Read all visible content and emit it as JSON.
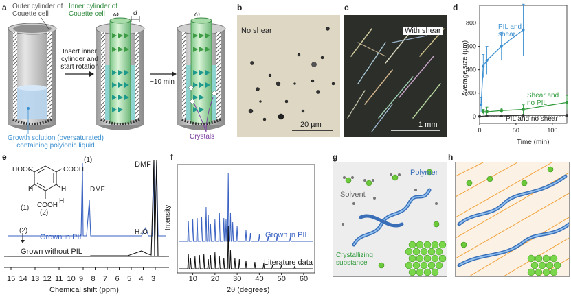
{
  "panel_letters": [
    "a",
    "b",
    "c",
    "d",
    "e",
    "f",
    "g",
    "h"
  ],
  "panel_a": {
    "outer_label": "Outer cylinder of Couette cell",
    "inner_label": "Inner cylinder of Couette cell",
    "omega": "ω",
    "d": "d",
    "arrow1": "Insert inner cylinder and start rotation",
    "arrow2": "~10 min",
    "solution_label": "Growth solution (oversaturated) containing polyionic liquid",
    "crystals_label": "Crystals"
  },
  "panel_b": {
    "label": "No shear",
    "scale": "20 µm"
  },
  "panel_c": {
    "label": "With shear",
    "scale": "1 mm"
  },
  "panel_d": {
    "chart_data": {
      "type": "line",
      "xlabel": "Time (min)",
      "ylabel": "Average size (µm)",
      "xlim": [
        0,
        120
      ],
      "ylim": [
        -60,
        950
      ],
      "xticks": [
        0,
        50,
        100
      ],
      "yticks": [
        0,
        200,
        400,
        600,
        800
      ],
      "series": [
        {
          "name": "PIL and shear",
          "color": "#3b8fd0",
          "x": [
            2,
            5,
            10,
            30,
            60
          ],
          "y": [
            100,
            430,
            480,
            600,
            740
          ],
          "err": [
            60,
            100,
            120,
            120,
            220
          ]
        },
        {
          "name": "Shear and no PIL",
          "color": "#2f9a3c",
          "x": [
            5,
            10,
            30,
            60,
            120
          ],
          "y": [
            40,
            40,
            50,
            60,
            120
          ],
          "err": [
            20,
            40,
            20,
            40,
            60
          ]
        },
        {
          "name": "PIL and no shear",
          "color": "#333333",
          "x": [
            0,
            10,
            30,
            60,
            120
          ],
          "y": [
            0,
            5,
            5,
            10,
            10
          ],
          "err": [
            0,
            0,
            0,
            0,
            0
          ]
        }
      ]
    }
  },
  "panel_e": {
    "labels": {
      "hooc": "HOOC",
      "cooh1": "COOH",
      "cooh2": "COOH",
      "h1": "H",
      "h2": "H",
      "h3": "H",
      "n1": "(1)",
      "n2": "(2)",
      "peak1": "(1)",
      "peak2": "(2)",
      "dmf1": "DMF",
      "dmf2": "DMF",
      "h2o": "H₂O"
    },
    "chart_data": {
      "type": "line",
      "xlabel": "Chemical shift (ppm)",
      "xticks": [
        15,
        14,
        13,
        12,
        11,
        10,
        9,
        8,
        7,
        6,
        5,
        4,
        3
      ],
      "series": [
        {
          "name": "Grown in PIL",
          "color": "#3a62c2"
        },
        {
          "name": "Grown without PIL",
          "color": "#111111"
        }
      ]
    }
  },
  "panel_f": {
    "chart_data": {
      "type": "line",
      "xlabel": "2θ (degrees)",
      "ylabel": "Intensity",
      "xlim": [
        3,
        65
      ],
      "xticks": [
        10,
        20,
        30,
        40,
        50,
        60
      ],
      "series": [
        {
          "name": "Grown in PIL",
          "color": "#3a62c2"
        },
        {
          "name": "Literature data",
          "color": "#111111"
        }
      ]
    }
  },
  "panel_g": {
    "solvent": "Solvent",
    "polymer": "Polymer",
    "substance": "Crystallizing substance"
  }
}
